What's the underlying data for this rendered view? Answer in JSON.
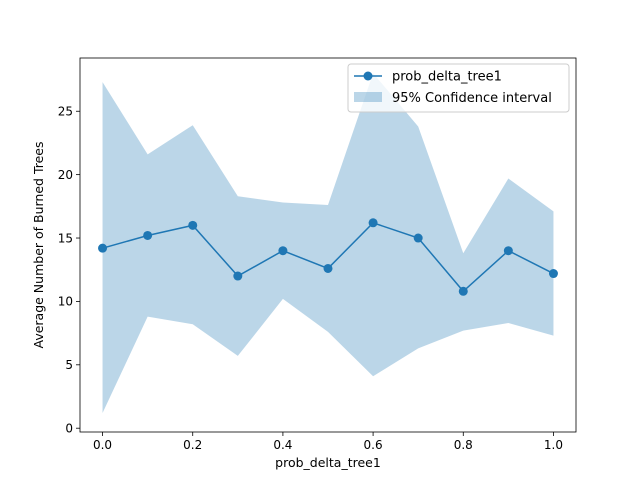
{
  "chart_data": {
    "type": "line",
    "title": "",
    "xlabel": "prob_delta_tree1",
    "ylabel": "Average Number of Burned Trees",
    "xlim": [
      -0.05,
      1.05
    ],
    "ylim": [
      -0.3,
      29.2
    ],
    "xticks": [
      0.0,
      0.2,
      0.4,
      0.6,
      0.8,
      1.0
    ],
    "xtick_labels": [
      "0.0",
      "0.2",
      "0.4",
      "0.6",
      "0.8",
      "1.0"
    ],
    "yticks": [
      0,
      5,
      10,
      15,
      20,
      25
    ],
    "ytick_labels": [
      "0",
      "5",
      "10",
      "15",
      "20",
      "25"
    ],
    "grid": false,
    "legend_position": "top-right",
    "x": [
      0.0,
      0.1,
      0.2,
      0.3,
      0.4,
      0.5,
      0.6,
      0.7,
      0.8,
      0.9,
      1.0
    ],
    "series": [
      {
        "name": "prob_delta_tree1",
        "kind": "line-with-markers",
        "color": "#1f77b4",
        "values": [
          14.2,
          15.2,
          16.0,
          12.0,
          14.0,
          12.6,
          16.2,
          15.0,
          10.8,
          14.0,
          12.2
        ]
      },
      {
        "name": "95% Confidence interval",
        "kind": "band",
        "color": "#1f77b4",
        "opacity": 0.3,
        "lower": [
          1.2,
          8.8,
          8.2,
          5.7,
          10.2,
          7.6,
          4.1,
          6.3,
          7.7,
          8.3,
          7.3
        ],
        "upper": [
          27.3,
          21.6,
          23.9,
          18.3,
          17.8,
          17.6,
          28.0,
          23.8,
          13.8,
          19.7,
          17.1
        ]
      }
    ]
  }
}
